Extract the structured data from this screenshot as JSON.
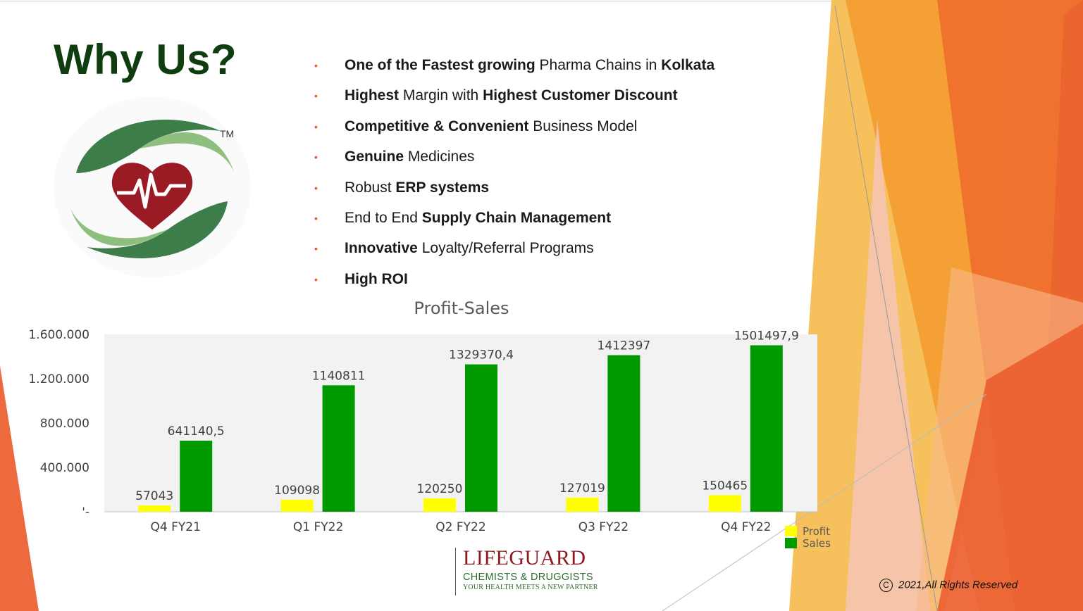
{
  "slide": {
    "title": "Why Us?",
    "tm": "TM",
    "bullets": [
      {
        "parts": [
          {
            "t": "One of the Fastest growing",
            "b": true
          },
          {
            "t": " Pharma Chains in ",
            "b": false
          },
          {
            "t": "Kolkata",
            "b": true
          }
        ]
      },
      {
        "parts": [
          {
            "t": "Highest",
            "b": true
          },
          {
            "t": " Margin with ",
            "b": false
          },
          {
            "t": "Highest Customer Discount",
            "b": true
          }
        ]
      },
      {
        "parts": [
          {
            "t": "Competitive & Convenient",
            "b": true
          },
          {
            "t": " Business Model",
            "b": false
          }
        ]
      },
      {
        "parts": [
          {
            "t": "Genuine",
            "b": true
          },
          {
            "t": " Medicines",
            "b": false
          }
        ]
      },
      {
        "parts": [
          {
            "t": "Robust ",
            "b": false
          },
          {
            "t": "ERP systems",
            "b": true
          }
        ]
      },
      {
        "parts": [
          {
            "t": "End to End ",
            "b": false
          },
          {
            "t": "Supply Chain Management",
            "b": true
          }
        ]
      },
      {
        "parts": [
          {
            "t": "Innovative",
            "b": true
          },
          {
            "t": " Loyalty/Referral Programs",
            "b": false
          }
        ]
      },
      {
        "parts": [
          {
            "t": "High ROI",
            "b": true
          }
        ]
      }
    ],
    "bullet_glyph": "•",
    "brand": {
      "name": "LIFEGUARD",
      "sub": "CHEMISTS & DRUGGISTS",
      "tag": "YOUR HEALTH MEETS A NEW PARTNER"
    },
    "copyright_symbol": "C",
    "copyright": "2021,All Rights Reserved"
  },
  "colors": {
    "title": "#0f3d0f",
    "bullet": "#e8542a",
    "profit": "#ffff00",
    "sales": "#009900",
    "plot_bg": "#f2f2f2",
    "brand": "#8b1a1f",
    "logo_green": "#3d7d4a",
    "logo_light_green": "#8fbf7f",
    "heart": "#9b1b24"
  },
  "chart_data": {
    "type": "bar",
    "title": "Profit-Sales",
    "categories": [
      "Q4 FY21",
      "Q1 FY22",
      "Q2 FY22",
      "Q3 FY22",
      "Q4 FY22"
    ],
    "series": [
      {
        "name": "Profit",
        "values": [
          57043,
          109098,
          120250,
          127019,
          150465
        ],
        "labels": [
          "57043",
          "109098",
          "120250",
          "127019",
          "150465"
        ]
      },
      {
        "name": "Sales",
        "values": [
          641140.5,
          1140811,
          1329370.4,
          1412397,
          1501497.9
        ],
        "labels": [
          "641140,5",
          "1140811",
          "1329370,4",
          "1412397",
          "1501497,9"
        ]
      }
    ],
    "ylim": [
      0,
      1600000
    ],
    "yticks": [
      0,
      400000,
      800000,
      1200000,
      1600000
    ],
    "ytick_labels": [
      "'-",
      "400.000",
      "800.000",
      "1.200.000",
      "1.600.000"
    ],
    "grid": false,
    "legend_position": "bottom-right"
  }
}
